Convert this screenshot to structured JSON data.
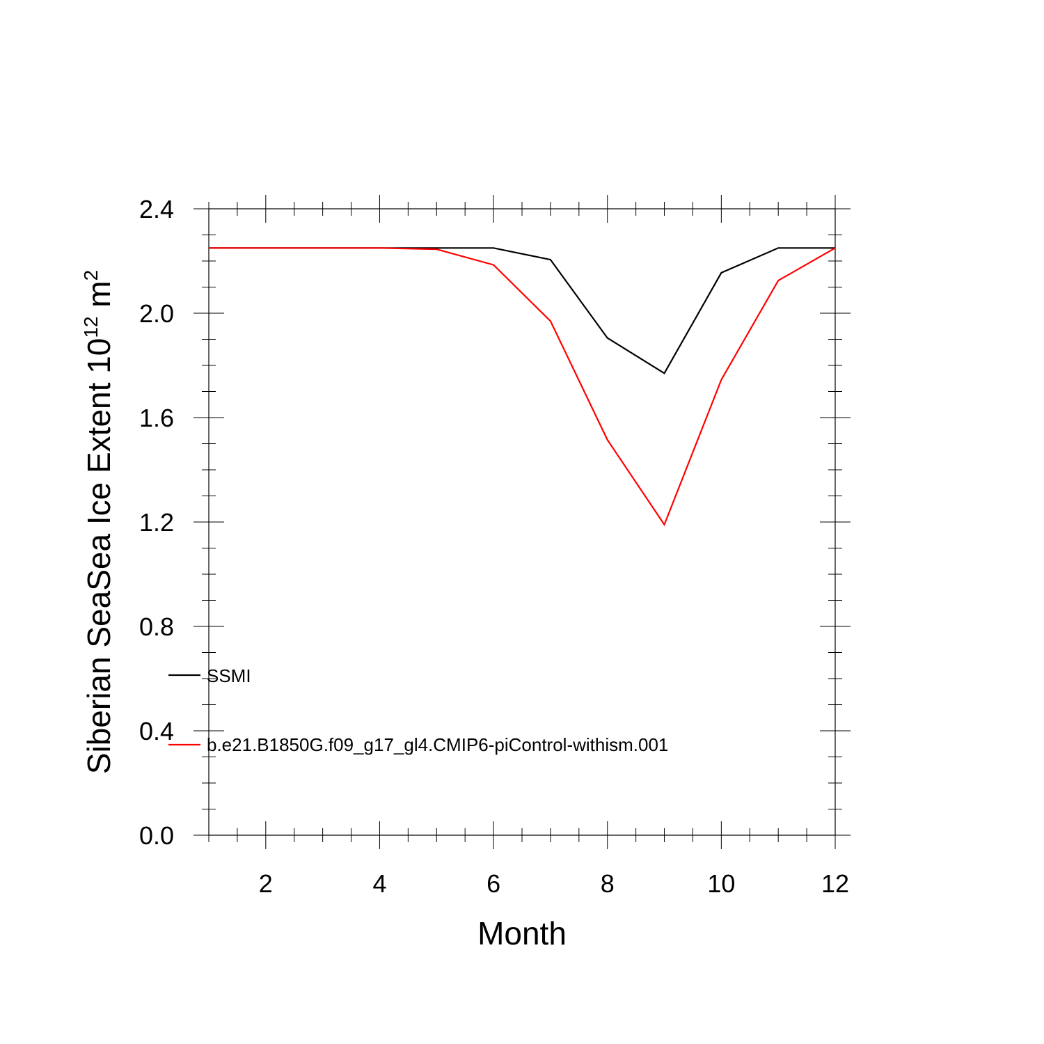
{
  "chart_data": {
    "type": "line",
    "xlabel": "Month",
    "ylabel": {
      "prefix": "Siberian SeaSea Ice Extent 10",
      "exponent": "12",
      "unit": " m",
      "unit_exponent": "2"
    },
    "xlim": [
      1,
      12
    ],
    "ylim": [
      0,
      2.4
    ],
    "xticks": [
      2,
      4,
      6,
      8,
      10,
      12
    ],
    "xtick_labels": [
      "2",
      "4",
      "6",
      "8",
      "10",
      "12"
    ],
    "yticks": [
      0,
      0.4,
      0.8,
      1.2,
      1.6,
      2.0,
      2.4
    ],
    "ytick_labels": [
      "0.0",
      "0.4",
      "0.8",
      "1.2",
      "1.6",
      "2.0",
      "2.4"
    ],
    "grid": false,
    "legend_placement": "lower-left",
    "x": [
      1,
      2,
      3,
      4,
      5,
      6,
      7,
      8,
      9,
      10,
      11,
      12
    ],
    "series": [
      {
        "name": "SSMI",
        "color": "#000000",
        "values": [
          2.25,
          2.25,
          2.25,
          2.25,
          2.25,
          2.25,
          2.205,
          1.905,
          1.77,
          2.155,
          2.25,
          2.25
        ]
      },
      {
        "name": "b.e21.B1850G.f09_g17_gl4.CMIP6-piControl-withism.001",
        "color": "#ff0000",
        "values": [
          2.25,
          2.25,
          2.25,
          2.25,
          2.245,
          2.185,
          1.97,
          1.515,
          1.19,
          1.745,
          2.125,
          2.25
        ]
      }
    ]
  }
}
